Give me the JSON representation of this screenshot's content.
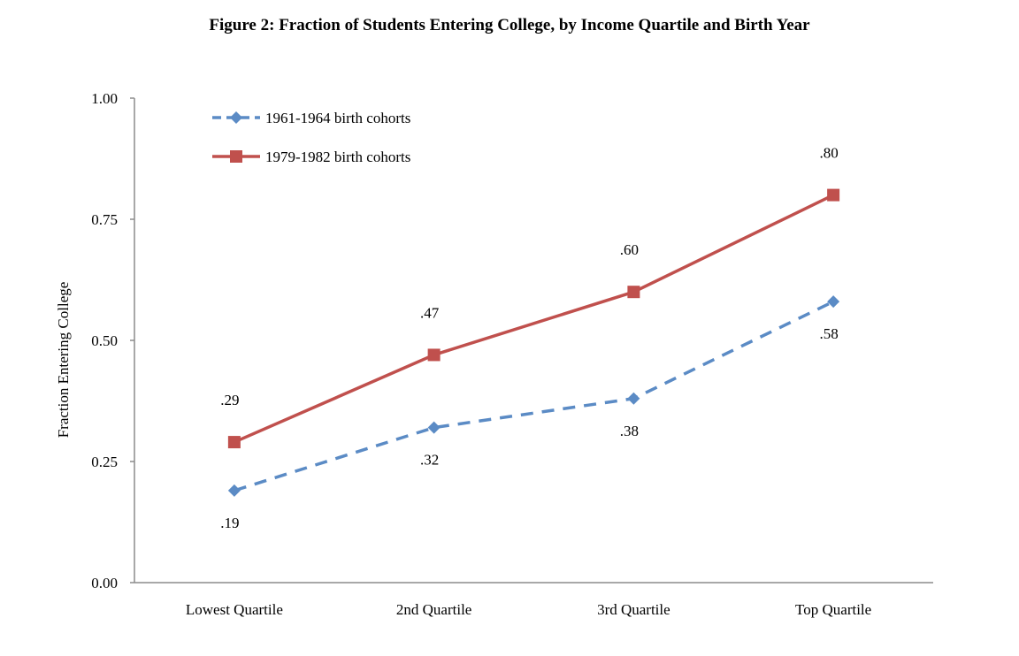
{
  "chart_data": {
    "type": "line",
    "title": "Figure 2: Fraction of Students Entering College, by Income Quartile and Birth Year",
    "xlabel": "",
    "ylabel": "Fraction Entering College",
    "categories": [
      "Lowest Quartile",
      "2nd Quartile",
      "3rd Quartile",
      "Top Quartile"
    ],
    "ylim": [
      0,
      1
    ],
    "yticks": [
      0,
      0.25,
      0.5,
      0.75,
      1.0
    ],
    "ytick_labels": [
      "0.00",
      "0.25",
      "0.50",
      "0.75",
      "1.00"
    ],
    "grid": false,
    "legend_position": "top-left",
    "series": [
      {
        "name": "1961-1964 birth cohorts",
        "values": [
          0.19,
          0.32,
          0.38,
          0.58
        ],
        "labels": [
          ".19",
          ".32",
          ".38",
          ".58"
        ],
        "color": "#5B8BC5",
        "line_style": "dashed",
        "marker": "diamond",
        "label_position": "below"
      },
      {
        "name": "1979-1982 birth cohorts",
        "values": [
          0.29,
          0.47,
          0.6,
          0.8
        ],
        "labels": [
          ".29",
          ".47",
          ".60",
          ".80"
        ],
        "color": "#C0504D",
        "line_style": "solid",
        "marker": "square",
        "label_position": "above"
      }
    ],
    "axis_color": "#8C8C8C"
  }
}
